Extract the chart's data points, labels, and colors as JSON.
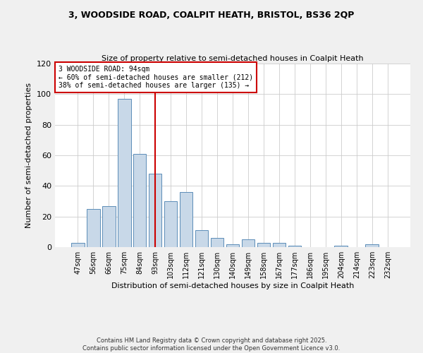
{
  "title1": "3, WOODSIDE ROAD, COALPIT HEATH, BRISTOL, BS36 2QP",
  "title2": "Size of property relative to semi-detached houses in Coalpit Heath",
  "xlabel": "Distribution of semi-detached houses by size in Coalpit Heath",
  "ylabel": "Number of semi-detached properties",
  "categories": [
    "47sqm",
    "56sqm",
    "66sqm",
    "75sqm",
    "84sqm",
    "93sqm",
    "103sqm",
    "112sqm",
    "121sqm",
    "130sqm",
    "140sqm",
    "149sqm",
    "158sqm",
    "167sqm",
    "177sqm",
    "186sqm",
    "195sqm",
    "204sqm",
    "214sqm",
    "223sqm",
    "232sqm"
  ],
  "values": [
    3,
    25,
    27,
    97,
    61,
    48,
    30,
    36,
    11,
    6,
    2,
    5,
    3,
    3,
    1,
    0,
    0,
    1,
    0,
    2,
    0
  ],
  "bar_color": "#c8d8e8",
  "bar_edge_color": "#5b8db8",
  "vline_x": 5,
  "vline_color": "#cc0000",
  "annotation_title": "3 WOODSIDE ROAD: 94sqm",
  "annotation_line1": "← 60% of semi-detached houses are smaller (212)",
  "annotation_line2": "38% of semi-detached houses are larger (135) →",
  "annotation_box_edge": "#cc0000",
  "ylim": [
    0,
    120
  ],
  "yticks": [
    0,
    20,
    40,
    60,
    80,
    100,
    120
  ],
  "footer1": "Contains HM Land Registry data © Crown copyright and database right 2025.",
  "footer2": "Contains public sector information licensed under the Open Government Licence v3.0.",
  "bg_color": "#f0f0f0",
  "plot_bg_color": "#ffffff",
  "grid_color": "#cccccc"
}
